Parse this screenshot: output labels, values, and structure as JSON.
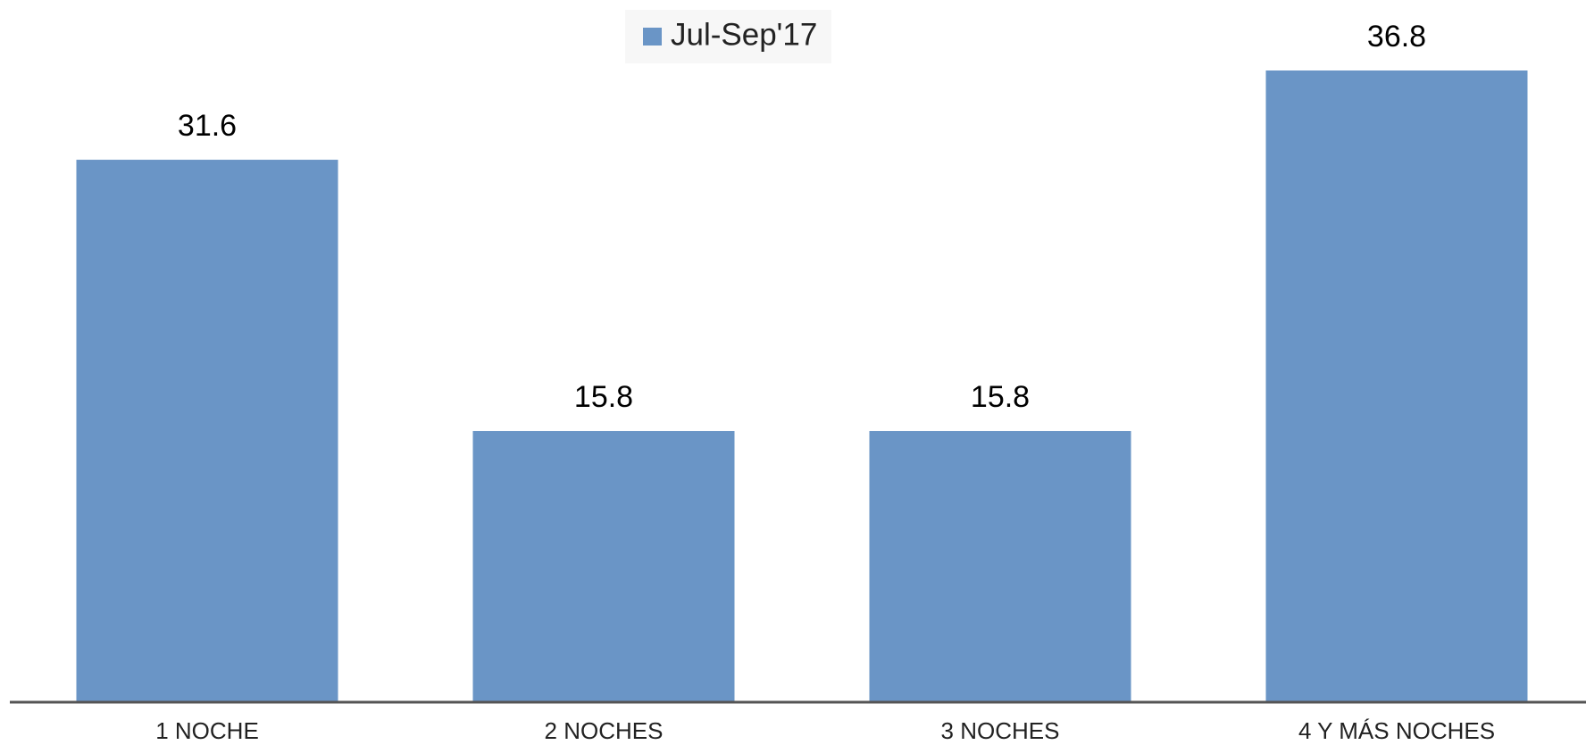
{
  "chart_data": {
    "type": "bar",
    "categories": [
      "1 NOCHE",
      "2 NOCHES",
      "3 NOCHES",
      "4 Y MÁS NOCHES"
    ],
    "series": [
      {
        "name": "Jul-Sep'17",
        "color": "#6a95c6",
        "values": [
          31.6,
          15.8,
          15.8,
          36.8
        ]
      }
    ],
    "legend": "top"
  }
}
